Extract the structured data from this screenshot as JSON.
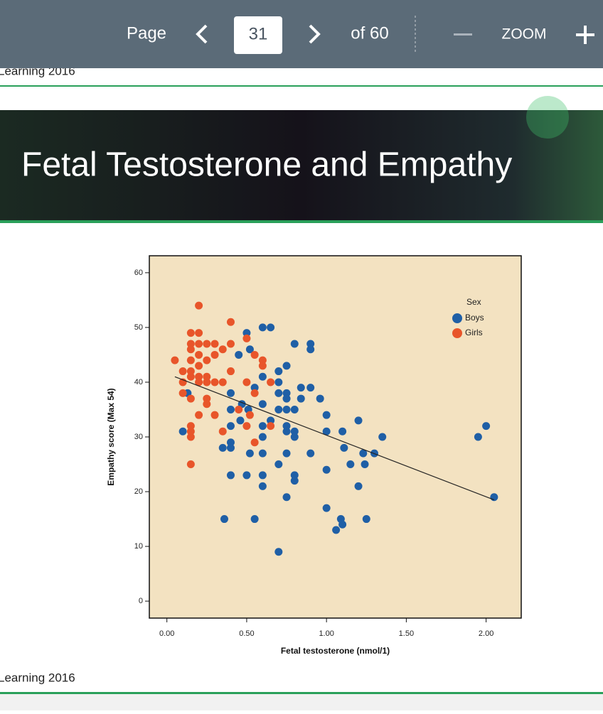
{
  "toolbar": {
    "page_label": "Page",
    "page_number": "31",
    "page_total": "of 60",
    "zoom_label": "ZOOM"
  },
  "slide": {
    "top_caption": "Learning 2016",
    "title": "Fetal Testosterone and Empathy",
    "bottom_caption": "Learning 2016"
  },
  "chart_data": {
    "type": "scatter",
    "xlabel": "Fetal testosterone (nmol/1)",
    "ylabel": "Empathy score (Max 54)",
    "xlim": [
      -0.11,
      2.22
    ],
    "ylim": [
      -3.1,
      63.1
    ],
    "xticks": [
      {
        "value": 0,
        "label": "0.00"
      },
      {
        "value": 0.5,
        "label": "0.50"
      },
      {
        "value": 1,
        "label": "1.00"
      },
      {
        "value": 1.5,
        "label": "1.50"
      },
      {
        "value": 2,
        "label": "2.00"
      }
    ],
    "yticks": [
      0,
      10,
      20,
      30,
      40,
      50,
      60
    ],
    "legend_title": "Sex",
    "legend_position": "upper right",
    "background": "#f3e2c1",
    "series": [
      {
        "name": "Boys",
        "color": "#1f5fa6",
        "x": [
          0.1,
          0.13,
          0.36,
          0.35,
          0.4,
          0.4,
          0.4,
          0.4,
          0.4,
          0.4,
          0.45,
          0.46,
          0.47,
          0.5,
          0.5,
          0.51,
          0.52,
          0.52,
          0.55,
          0.55,
          0.6,
          0.6,
          0.6,
          0.6,
          0.6,
          0.6,
          0.6,
          0.6,
          0.65,
          0.65,
          0.7,
          0.7,
          0.7,
          0.7,
          0.7,
          0.7,
          0.75,
          0.75,
          0.75,
          0.75,
          0.75,
          0.75,
          0.75,
          0.75,
          0.8,
          0.8,
          0.8,
          0.8,
          0.8,
          0.8,
          0.84,
          0.84,
          0.9,
          0.9,
          0.9,
          0.9,
          0.96,
          1.0,
          1.0,
          1.0,
          1.0,
          1.06,
          1.09,
          1.1,
          1.1,
          1.11,
          1.15,
          1.2,
          1.2,
          1.23,
          1.24,
          1.25,
          1.3,
          1.35,
          1.95,
          2.0,
          2.05
        ],
        "values": [
          31,
          38,
          15,
          28,
          23,
          28,
          29,
          32,
          35,
          38,
          45,
          33,
          36,
          49,
          23,
          35,
          27,
          46,
          15,
          39,
          41,
          36,
          32,
          30,
          27,
          23,
          21,
          50,
          50,
          33,
          42,
          40,
          38,
          35,
          25,
          9,
          43,
          38,
          37,
          35,
          32,
          31,
          27,
          19,
          47,
          35,
          31,
          30,
          23,
          22,
          39,
          37,
          47,
          46,
          39,
          27,
          37,
          34,
          31,
          24,
          17,
          13,
          15,
          14,
          31,
          28,
          25,
          33,
          21,
          27,
          25,
          15,
          27,
          30,
          30,
          32,
          19
        ]
      },
      {
        "name": "Girls",
        "color": "#e8552a",
        "x": [
          0.05,
          0.1,
          0.1,
          0.1,
          0.15,
          0.15,
          0.15,
          0.15,
          0.15,
          0.15,
          0.15,
          0.15,
          0.15,
          0.15,
          0.15,
          0.2,
          0.2,
          0.2,
          0.2,
          0.2,
          0.2,
          0.2,
          0.2,
          0.25,
          0.25,
          0.25,
          0.25,
          0.25,
          0.25,
          0.3,
          0.3,
          0.3,
          0.3,
          0.35,
          0.35,
          0.35,
          0.4,
          0.4,
          0.4,
          0.45,
          0.5,
          0.5,
          0.5,
          0.52,
          0.55,
          0.55,
          0.55,
          0.6,
          0.6,
          0.65,
          0.65
        ],
        "values": [
          44,
          42,
          40,
          38,
          49,
          47,
          46,
          44,
          42,
          41,
          37,
          32,
          31,
          30,
          25,
          54,
          49,
          47,
          45,
          43,
          41,
          40,
          34,
          47,
          44,
          41,
          40,
          37,
          36,
          47,
          45,
          40,
          34,
          46,
          31,
          40,
          51,
          47,
          42,
          35,
          48,
          40,
          32,
          34,
          38,
          29,
          45,
          44,
          43,
          40,
          32
        ]
      }
    ],
    "trend_line": {
      "x": [
        0.05,
        2.05
      ],
      "y": [
        41,
        18.5
      ]
    }
  }
}
